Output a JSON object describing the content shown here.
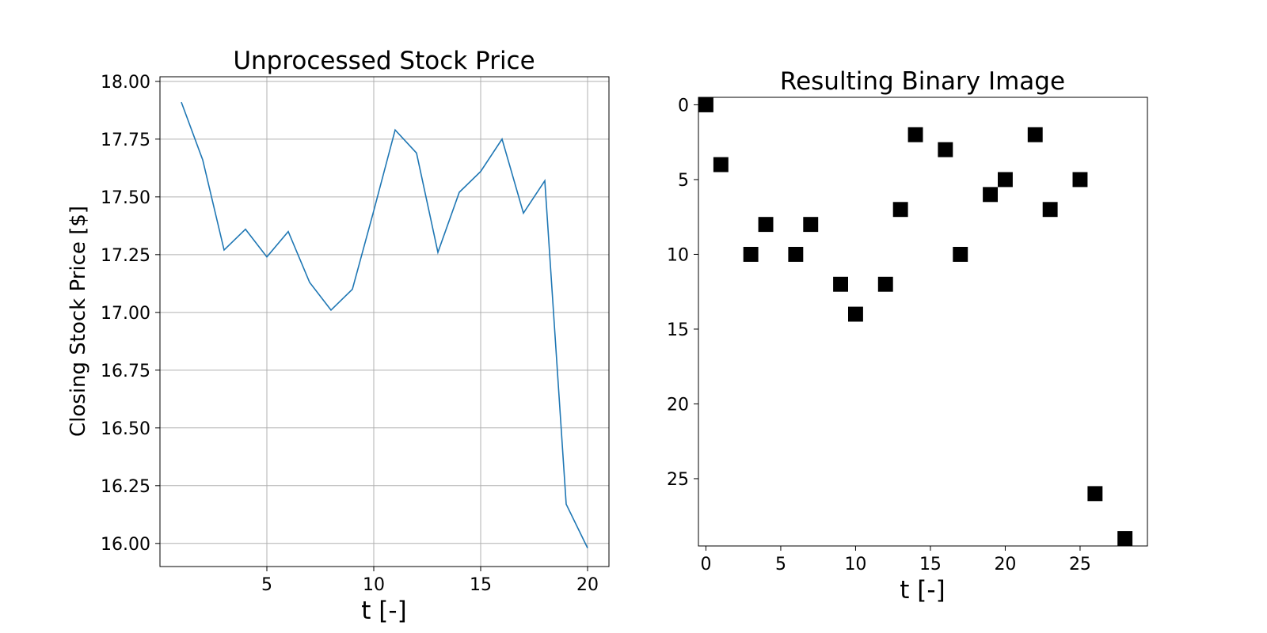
{
  "chart_data": [
    {
      "type": "line",
      "title": "Unprocessed Stock Price",
      "xlabel": "t [-]",
      "ylabel": "Closing Stock Price [$]",
      "xlim": [
        0,
        21
      ],
      "ylim": [
        15.9,
        18.02
      ],
      "xticks": [
        5,
        10,
        15,
        20
      ],
      "yticks": [
        16.0,
        16.25,
        16.5,
        16.75,
        17.0,
        17.25,
        17.5,
        17.75,
        18.0
      ],
      "grid": true,
      "series": [
        {
          "color": "#1f77b4",
          "x": [
            1,
            2,
            3,
            4,
            5,
            6,
            7,
            8,
            9,
            10,
            11,
            12,
            13,
            14,
            15,
            16,
            17,
            18,
            19,
            20
          ],
          "y": [
            17.91,
            17.66,
            17.27,
            17.36,
            17.24,
            17.35,
            17.13,
            17.01,
            17.1,
            17.44,
            17.79,
            17.69,
            17.26,
            17.52,
            17.61,
            17.75,
            17.43,
            17.57,
            16.17,
            15.98
          ]
        }
      ]
    },
    {
      "type": "heatmap",
      "title": "Resulting Binary Image",
      "xlabel": "t [-]",
      "ylabel": "",
      "xlim": [
        -0.5,
        29.5
      ],
      "ylim": [
        -0.5,
        29.5
      ],
      "y_inverted": true,
      "xticks": [
        0,
        5,
        10,
        15,
        20,
        25
      ],
      "yticks": [
        0,
        5,
        10,
        15,
        20,
        25
      ],
      "grid": false,
      "cmap": "binary",
      "filled_cells": [
        {
          "x": 0,
          "y": 0
        },
        {
          "x": 1,
          "y": 4
        },
        {
          "x": 3,
          "y": 10
        },
        {
          "x": 4,
          "y": 8
        },
        {
          "x": 6,
          "y": 10
        },
        {
          "x": 7,
          "y": 8
        },
        {
          "x": 9,
          "y": 12
        },
        {
          "x": 10,
          "y": 14
        },
        {
          "x": 12,
          "y": 12
        },
        {
          "x": 13,
          "y": 7
        },
        {
          "x": 14,
          "y": 2
        },
        {
          "x": 16,
          "y": 3
        },
        {
          "x": 17,
          "y": 10
        },
        {
          "x": 19,
          "y": 6
        },
        {
          "x": 20,
          "y": 5
        },
        {
          "x": 22,
          "y": 2
        },
        {
          "x": 23,
          "y": 7
        },
        {
          "x": 25,
          "y": 5
        },
        {
          "x": 26,
          "y": 26
        },
        {
          "x": 28,
          "y": 29
        }
      ]
    }
  ]
}
